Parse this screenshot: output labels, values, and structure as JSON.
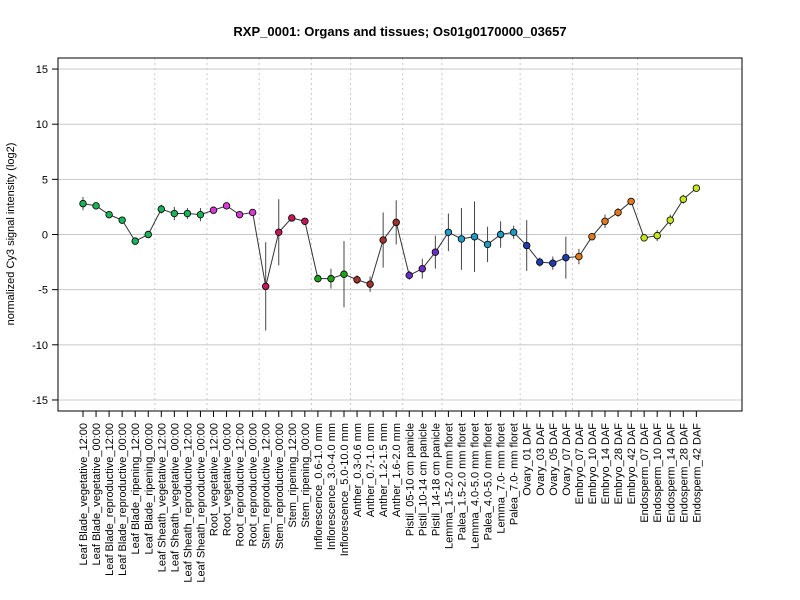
{
  "chart_data": {
    "type": "line",
    "title": "RXP_0001: Organs and tissues; Os01g0170000_03657",
    "xlabel": "",
    "ylabel": "normalized Cy3 signal intensity (log2)",
    "ylim": [
      -16,
      16
    ],
    "yticks": [
      -15,
      -10,
      -5,
      0,
      5,
      10,
      15
    ],
    "grid": true,
    "categories": [
      "Leaf Blade_vegetative_12:00",
      "Leaf Blade_vegetative_00:00",
      "Leaf Blade_reproductive_12:00",
      "Leaf Blade_reproductive_00:00",
      "Leaf Blade_ripening_12:00",
      "Leaf Blade_ripening_00:00",
      "Leaf Sheath_vegetative_12:00",
      "Leaf Sheath_vegetative_00:00",
      "Leaf Sheath_reproductive_12:00",
      "Leaf Sheath_reproductive_00:00",
      "Root_vegetative_12:00",
      "Root_vegetative_00:00",
      "Root_reproductive_12:00",
      "Root_reproductive_00:00",
      "Stem_reproductive_12:00",
      "Stem_reproductive_00:00",
      "Stem_ripening_12:00",
      "Stem_ripening_00:00",
      "Inflorescence_0.6-1.0 mm",
      "Inflorescence_3.0-4.0 mm",
      "Inflorescence_5.0-10.0 mm",
      "Anther_0.3-0.6 mm",
      "Anther_0.7-1.0 mm",
      "Anther_1.2-1.5 mm",
      "Anther_1.6-2.0 mm",
      "Pistil_05-10 cm panicle",
      "Pistil_10-14 cm panicle",
      "Pistil_14-18 cm panicle",
      "Lemma_1.5-2.0 mm floret",
      "Palea_1.5-2.0 mm floret",
      "Lemma_4.0-5.0 mm floret",
      "Palea_4.0-5.0 mm floret",
      "Lemma_7.0- mm floret",
      "Palea_7.0- mm floret",
      "Ovary_01 DAF",
      "Ovary_03 DAF",
      "Ovary_05 DAF",
      "Ovary_07 DAF",
      "Embryo_07 DAF",
      "Embryo_10 DAF",
      "Embryo_14 DAF",
      "Embryo_28 DAF",
      "Embryo_42 DAF",
      "Endosperm_07 DAF",
      "Endosperm_10 DAF",
      "Endosperm_14 DAF",
      "Endosperm_28 DAF",
      "Endosperm_42 DAF"
    ],
    "series": [
      {
        "values": [
          2.8,
          2.6,
          1.8,
          1.3,
          -0.6,
          0.0,
          2.3,
          1.9,
          1.9,
          1.8,
          2.2,
          2.6,
          1.8,
          2.0,
          -4.7,
          0.2,
          1.5,
          1.2,
          -4.0,
          -4.0,
          -3.6,
          -4.1,
          -4.5,
          -0.5,
          1.1,
          -3.7,
          -3.1,
          -1.6,
          0.2,
          -0.4,
          -0.2,
          -0.9,
          0.0,
          0.2,
          -1.0,
          -2.5,
          -2.6,
          -2.1,
          -2.0,
          -0.2,
          1.2,
          2.0,
          3.0,
          -0.3,
          -0.1,
          1.3,
          3.2,
          4.2
        ],
        "errors": [
          0.6,
          0.3,
          0.3,
          0.3,
          0.3,
          0.3,
          0.4,
          0.6,
          0.5,
          0.6,
          0.3,
          0.3,
          0.3,
          0.3,
          4.0,
          3.0,
          0.3,
          0.3,
          0.3,
          0.9,
          3.0,
          0.4,
          0.7,
          2.5,
          2.0,
          0.4,
          0.9,
          1.5,
          1.7,
          2.8,
          3.2,
          1.6,
          1.2,
          0.6,
          2.3,
          0.4,
          0.6,
          1.9,
          0.7,
          0.3,
          0.6,
          0.4,
          0.3,
          0.3,
          0.5,
          0.5,
          0.4,
          0.3
        ]
      }
    ],
    "point_colors": [
      "#1bb35a",
      "#1bb35a",
      "#1bb35a",
      "#1bb35a",
      "#1bb35a",
      "#1bb35a",
      "#1bb35a",
      "#1bb35a",
      "#1bb35a",
      "#1bb35a",
      "#d43ad4",
      "#d43ad4",
      "#d43ad4",
      "#d43ad4",
      "#c2185b",
      "#c2185b",
      "#c2185b",
      "#c2185b",
      "#1aa61a",
      "#1aa61a",
      "#1aa61a",
      "#a0332c",
      "#a0332c",
      "#a0332c",
      "#a0332c",
      "#6a2fc4",
      "#6a2fc4",
      "#6a2fc4",
      "#1f9bc4",
      "#1f9bc4",
      "#1f9bc4",
      "#1f9bc4",
      "#1f9bc4",
      "#1f9bc4",
      "#1f3bb0",
      "#1f3bb0",
      "#1f3bb0",
      "#1f3bb0",
      "#e07a1f",
      "#e07a1f",
      "#e07a1f",
      "#e07a1f",
      "#e07a1f",
      "#c8e61f",
      "#c8e61f",
      "#c8e61f",
      "#c8e61f",
      "#c8e61f"
    ]
  }
}
